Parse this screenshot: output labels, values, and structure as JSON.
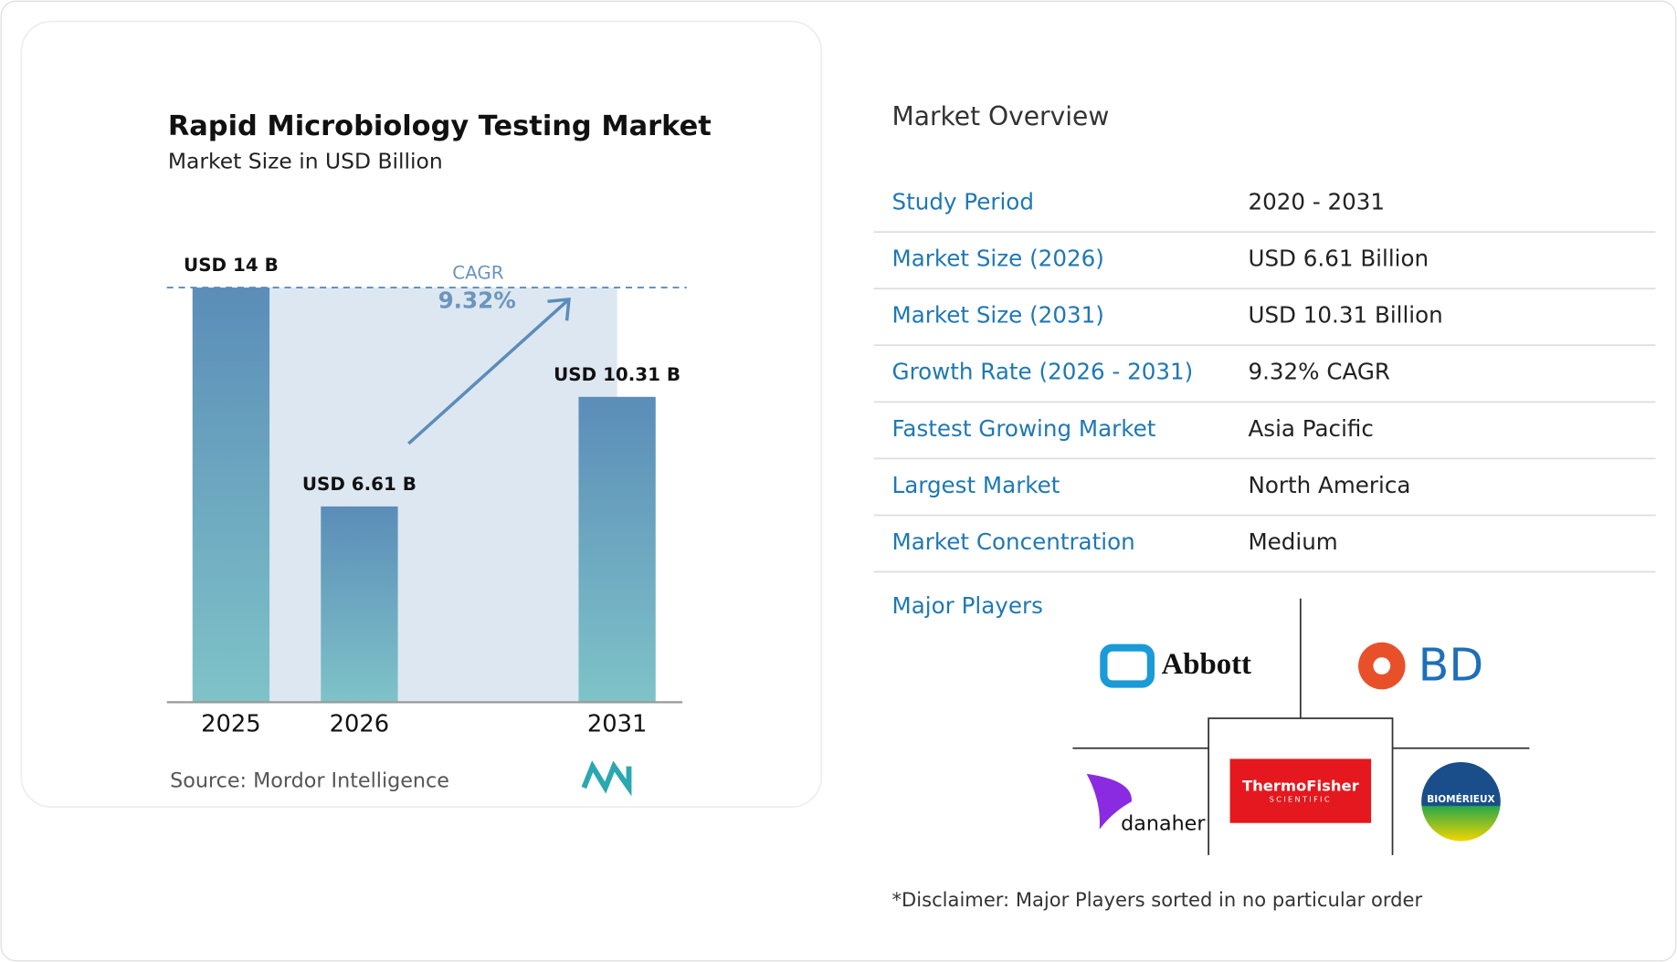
{
  "chart_data": {
    "type": "bar",
    "title": "Rapid Microbiology Testing Market",
    "subtitle": "Market Size in USD Billion",
    "categories": [
      "2025",
      "2026",
      "2031"
    ],
    "values": [
      14,
      6.61,
      10.31
    ],
    "value_labels": [
      "USD 14 B",
      "USD 6.61 B",
      "USD 10.31 B"
    ],
    "color": "#5b8db8",
    "cagr_label": "CAGR",
    "cagr_value": "9.32%",
    "source": "Source:  Mordor Intelligence"
  },
  "overview": {
    "title": "Market Overview",
    "rows": [
      [
        "Study Period",
        "2020 - 2031"
      ],
      [
        "Market Size (2026)",
        "USD 6.61 Billion"
      ],
      [
        "Market Size (2031)",
        "USD 10.31 Billion"
      ],
      [
        "Growth Rate (2026 - 2031)",
        "9.32% CAGR"
      ],
      [
        "Fastest Growing Market",
        "Asia Pacific"
      ],
      [
        "Largest Market",
        "North America"
      ],
      [
        "Market Concentration",
        "Medium"
      ]
    ],
    "players_title": "Major Players",
    "players": [
      "Abbott",
      "BD",
      "danaher",
      "ThermoFisher",
      "SCIENTIFIC",
      "BIOMÉRIEUX"
    ],
    "disclaimer": "*Disclaimer: Major Players sorted in no particular order"
  }
}
